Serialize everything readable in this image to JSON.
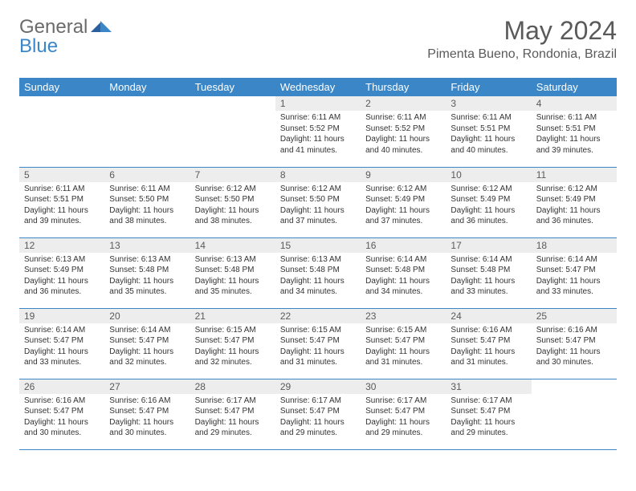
{
  "logo": {
    "general": "General",
    "blue": "Blue"
  },
  "title": "May 2024",
  "location": "Pimenta Bueno, Rondonia, Brazil",
  "colors": {
    "header_bg": "#3b86c6",
    "header_text": "#ffffff",
    "daynum_bg": "#ededed",
    "border": "#3b86c6",
    "title_color": "#5a5a5a",
    "logo_general": "#6b6b6b",
    "logo_blue": "#3b86c6",
    "body_text": "#333333",
    "background": "#ffffff"
  },
  "weekdays": [
    "Sunday",
    "Monday",
    "Tuesday",
    "Wednesday",
    "Thursday",
    "Friday",
    "Saturday"
  ],
  "weeks": [
    [
      {
        "num": "",
        "lines": []
      },
      {
        "num": "",
        "lines": []
      },
      {
        "num": "",
        "lines": []
      },
      {
        "num": "1",
        "lines": [
          "Sunrise: 6:11 AM",
          "Sunset: 5:52 PM",
          "Daylight: 11 hours and 41 minutes."
        ]
      },
      {
        "num": "2",
        "lines": [
          "Sunrise: 6:11 AM",
          "Sunset: 5:52 PM",
          "Daylight: 11 hours and 40 minutes."
        ]
      },
      {
        "num": "3",
        "lines": [
          "Sunrise: 6:11 AM",
          "Sunset: 5:51 PM",
          "Daylight: 11 hours and 40 minutes."
        ]
      },
      {
        "num": "4",
        "lines": [
          "Sunrise: 6:11 AM",
          "Sunset: 5:51 PM",
          "Daylight: 11 hours and 39 minutes."
        ]
      }
    ],
    [
      {
        "num": "5",
        "lines": [
          "Sunrise: 6:11 AM",
          "Sunset: 5:51 PM",
          "Daylight: 11 hours and 39 minutes."
        ]
      },
      {
        "num": "6",
        "lines": [
          "Sunrise: 6:11 AM",
          "Sunset: 5:50 PM",
          "Daylight: 11 hours and 38 minutes."
        ]
      },
      {
        "num": "7",
        "lines": [
          "Sunrise: 6:12 AM",
          "Sunset: 5:50 PM",
          "Daylight: 11 hours and 38 minutes."
        ]
      },
      {
        "num": "8",
        "lines": [
          "Sunrise: 6:12 AM",
          "Sunset: 5:50 PM",
          "Daylight: 11 hours and 37 minutes."
        ]
      },
      {
        "num": "9",
        "lines": [
          "Sunrise: 6:12 AM",
          "Sunset: 5:49 PM",
          "Daylight: 11 hours and 37 minutes."
        ]
      },
      {
        "num": "10",
        "lines": [
          "Sunrise: 6:12 AM",
          "Sunset: 5:49 PM",
          "Daylight: 11 hours and 36 minutes."
        ]
      },
      {
        "num": "11",
        "lines": [
          "Sunrise: 6:12 AM",
          "Sunset: 5:49 PM",
          "Daylight: 11 hours and 36 minutes."
        ]
      }
    ],
    [
      {
        "num": "12",
        "lines": [
          "Sunrise: 6:13 AM",
          "Sunset: 5:49 PM",
          "Daylight: 11 hours and 36 minutes."
        ]
      },
      {
        "num": "13",
        "lines": [
          "Sunrise: 6:13 AM",
          "Sunset: 5:48 PM",
          "Daylight: 11 hours and 35 minutes."
        ]
      },
      {
        "num": "14",
        "lines": [
          "Sunrise: 6:13 AM",
          "Sunset: 5:48 PM",
          "Daylight: 11 hours and 35 minutes."
        ]
      },
      {
        "num": "15",
        "lines": [
          "Sunrise: 6:13 AM",
          "Sunset: 5:48 PM",
          "Daylight: 11 hours and 34 minutes."
        ]
      },
      {
        "num": "16",
        "lines": [
          "Sunrise: 6:14 AM",
          "Sunset: 5:48 PM",
          "Daylight: 11 hours and 34 minutes."
        ]
      },
      {
        "num": "17",
        "lines": [
          "Sunrise: 6:14 AM",
          "Sunset: 5:48 PM",
          "Daylight: 11 hours and 33 minutes."
        ]
      },
      {
        "num": "18",
        "lines": [
          "Sunrise: 6:14 AM",
          "Sunset: 5:47 PM",
          "Daylight: 11 hours and 33 minutes."
        ]
      }
    ],
    [
      {
        "num": "19",
        "lines": [
          "Sunrise: 6:14 AM",
          "Sunset: 5:47 PM",
          "Daylight: 11 hours and 33 minutes."
        ]
      },
      {
        "num": "20",
        "lines": [
          "Sunrise: 6:14 AM",
          "Sunset: 5:47 PM",
          "Daylight: 11 hours and 32 minutes."
        ]
      },
      {
        "num": "21",
        "lines": [
          "Sunrise: 6:15 AM",
          "Sunset: 5:47 PM",
          "Daylight: 11 hours and 32 minutes."
        ]
      },
      {
        "num": "22",
        "lines": [
          "Sunrise: 6:15 AM",
          "Sunset: 5:47 PM",
          "Daylight: 11 hours and 31 minutes."
        ]
      },
      {
        "num": "23",
        "lines": [
          "Sunrise: 6:15 AM",
          "Sunset: 5:47 PM",
          "Daylight: 11 hours and 31 minutes."
        ]
      },
      {
        "num": "24",
        "lines": [
          "Sunrise: 6:16 AM",
          "Sunset: 5:47 PM",
          "Daylight: 11 hours and 31 minutes."
        ]
      },
      {
        "num": "25",
        "lines": [
          "Sunrise: 6:16 AM",
          "Sunset: 5:47 PM",
          "Daylight: 11 hours and 30 minutes."
        ]
      }
    ],
    [
      {
        "num": "26",
        "lines": [
          "Sunrise: 6:16 AM",
          "Sunset: 5:47 PM",
          "Daylight: 11 hours and 30 minutes."
        ]
      },
      {
        "num": "27",
        "lines": [
          "Sunrise: 6:16 AM",
          "Sunset: 5:47 PM",
          "Daylight: 11 hours and 30 minutes."
        ]
      },
      {
        "num": "28",
        "lines": [
          "Sunrise: 6:17 AM",
          "Sunset: 5:47 PM",
          "Daylight: 11 hours and 29 minutes."
        ]
      },
      {
        "num": "29",
        "lines": [
          "Sunrise: 6:17 AM",
          "Sunset: 5:47 PM",
          "Daylight: 11 hours and 29 minutes."
        ]
      },
      {
        "num": "30",
        "lines": [
          "Sunrise: 6:17 AM",
          "Sunset: 5:47 PM",
          "Daylight: 11 hours and 29 minutes."
        ]
      },
      {
        "num": "31",
        "lines": [
          "Sunrise: 6:17 AM",
          "Sunset: 5:47 PM",
          "Daylight: 11 hours and 29 minutes."
        ]
      },
      {
        "num": "",
        "lines": []
      }
    ]
  ]
}
